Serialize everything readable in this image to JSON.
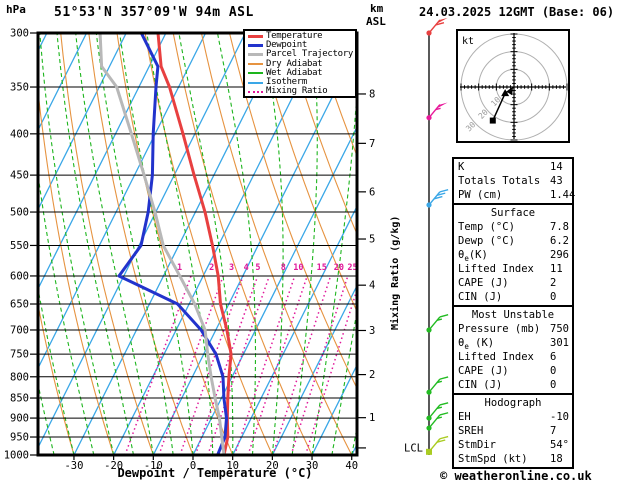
{
  "ui": {
    "pressure_unit": "hPa",
    "title": "51°53'N 357°09'W 94m ASL",
    "altitude_unit_line1": "km",
    "altitude_unit_line2": "ASL",
    "datetime": "24.03.2025 12GMT (Base: 06)",
    "xaxis_title": "Dewpoint / Temperature (°C)",
    "right_axis_title": "Mixing Ratio (g/kg)",
    "lcl_label": "LCL",
    "footer": "© weatheronline.co.uk"
  },
  "legend": {
    "items": [
      {
        "label": "Temperature",
        "color": "#e84040",
        "style": "thick"
      },
      {
        "label": "Dewpoint",
        "color": "#2233cc",
        "style": "thick"
      },
      {
        "label": "Parcel Trajectory",
        "color": "#b8b8b8",
        "style": "thick"
      },
      {
        "label": "Dry Adiabat",
        "color": "#e69340",
        "style": "thin"
      },
      {
        "label": "Wet Adiabat",
        "color": "#1db51d",
        "style": "thin"
      },
      {
        "label": "Isotherm",
        "color": "#3aa7e7",
        "style": "thin"
      },
      {
        "label": "Mixing Ratio",
        "color": "#e0189a",
        "style": "dotted"
      }
    ]
  },
  "table": {
    "sections": [
      {
        "header": null,
        "rows": [
          [
            "K",
            "14"
          ],
          [
            "Totals Totals",
            "43"
          ],
          [
            "PW (cm)",
            "1.44"
          ]
        ]
      },
      {
        "header": "Surface",
        "rows": [
          [
            "Temp (°C)",
            "7.8"
          ],
          [
            "Dewp (°C)",
            "6.2"
          ],
          [
            "θe(K)",
            "296"
          ],
          [
            "Lifted Index",
            "11"
          ],
          [
            "CAPE (J)",
            "2"
          ],
          [
            "CIN (J)",
            "0"
          ]
        ]
      },
      {
        "header": "Most Unstable",
        "rows": [
          [
            "Pressure (mb)",
            "750"
          ],
          [
            "θe (K)",
            "301"
          ],
          [
            "Lifted Index",
            "6"
          ],
          [
            "CAPE (J)",
            "0"
          ],
          [
            "CIN (J)",
            "0"
          ]
        ]
      },
      {
        "header": "Hodograph",
        "rows": [
          [
            "EH",
            "-10"
          ],
          [
            "SREH",
            "7"
          ],
          [
            "StmDir",
            "54°"
          ],
          [
            "StmSpd (kt)",
            "18"
          ]
        ]
      }
    ]
  },
  "chart_data": [
    {
      "type": "line",
      "variant": "skew-t-log-p-sounding",
      "title": "51°53'N 357°09'W 94m ASL",
      "datetime": "24.03.2025 12GMT (Base: 06)",
      "x_axis": {
        "label": "Dewpoint / Temperature (°C)",
        "ticks_C": [
          -30,
          -20,
          -10,
          0,
          10,
          20,
          30,
          40
        ]
      },
      "y_axis": {
        "label": "hPa",
        "scale": "log",
        "ticks_hPa": [
          300,
          350,
          400,
          450,
          500,
          550,
          600,
          650,
          700,
          750,
          800,
          850,
          900,
          950,
          1000
        ]
      },
      "right_axis": {
        "label": "km ASL",
        "ticks_km": [
          1,
          2,
          3,
          4,
          5,
          6,
          7,
          8
        ],
        "lcl_hPa": 980
      },
      "mixing_ratio_labels_gkg": [
        1,
        2,
        3,
        4,
        5,
        8,
        10,
        15,
        20,
        25
      ],
      "pressure_levels_hPa": [
        1000,
        950,
        900,
        850,
        800,
        750,
        700,
        650,
        600,
        550,
        500,
        450,
        400,
        350,
        330,
        300
      ],
      "series": [
        {
          "name": "Temperature",
          "color": "#e84040",
          "values_C": [
            7.8,
            6.5,
            4.0,
            1.6,
            -0.8,
            -3.1,
            -7.2,
            -12.1,
            -16.2,
            -21.5,
            -27.6,
            -35.0,
            -43.0,
            -52.3,
            -57.0,
            -62.0
          ]
        },
        {
          "name": "Dewpoint",
          "color": "#2233cc",
          "values_C": [
            6.2,
            5.8,
            3.8,
            0.6,
            -2.3,
            -6.9,
            -13.7,
            -22.9,
            -41.2,
            -39.5,
            -41.9,
            -45.5,
            -50.5,
            -55.7,
            -57.8,
            -66.2
          ]
        },
        {
          "name": "Parcel Trajectory",
          "color": "#b8b8b8",
          "values_C": [
            7.8,
            5.0,
            2.0,
            -1.6,
            -5.3,
            -9.0,
            -12.7,
            -18.6,
            -25.9,
            -33.9,
            -40.2,
            -47.6,
            -56.0,
            -65.6,
            -72.0,
            -76.6
          ]
        }
      ],
      "background": {
        "isotherms_C": {
          "min": -130,
          "max": 40,
          "step": 10,
          "color": "#3aa7e7"
        },
        "dry_adiabats_theta_C": {
          "min": -40,
          "max": 160,
          "step": 10,
          "color": "#e69340"
        },
        "wet_adiabats_thetaw_C": {
          "min": -70,
          "max": 45,
          "step": 5,
          "color": "#1db51d"
        },
        "mixing_ratio_lines": {
          "values_gkg": [
            1,
            2,
            3,
            4,
            5,
            8,
            10,
            15,
            20,
            25
          ],
          "top_hPa": 600,
          "color": "#e0189a"
        }
      },
      "wind_barbs": [
        {
          "hPa": 991,
          "speed_kt": 20,
          "color": "#aacc22"
        },
        {
          "hPa": 926,
          "speed_kt": 15,
          "color": "#22bb22"
        },
        {
          "hPa": 900,
          "speed_kt": 15,
          "color": "#22bb22"
        },
        {
          "hPa": 836,
          "speed_kt": 15,
          "color": "#22bb22"
        },
        {
          "hPa": 700,
          "speed_kt": 15,
          "color": "#22bb22"
        },
        {
          "hPa": 490,
          "speed_kt": 30,
          "color": "#3aa7e7"
        },
        {
          "hPa": 382,
          "speed_kt": 55,
          "color": "#e8199a"
        },
        {
          "hPa": 300,
          "speed_kt": 60,
          "color": "#e84040"
        }
      ]
    },
    {
      "type": "line",
      "variant": "hodograph",
      "unit_label": "kt",
      "rings_kt": [
        10,
        20,
        30
      ],
      "trace_uv_kt": [
        [
          0,
          0
        ],
        [
          -5,
          -3.5
        ],
        [
          -12,
          -19
        ]
      ],
      "marker_mid": "triangle",
      "marker_end": "square"
    }
  ]
}
